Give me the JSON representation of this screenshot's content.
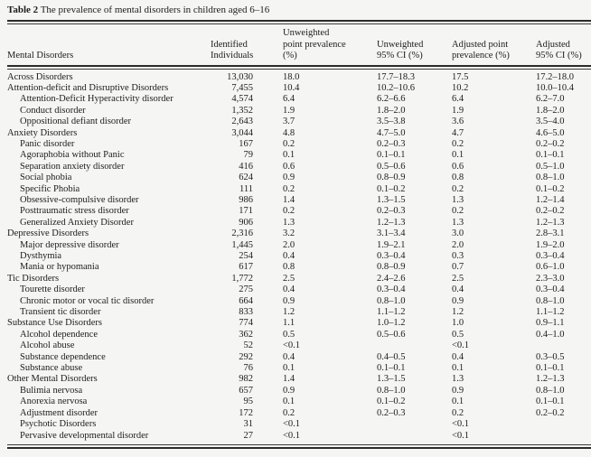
{
  "caption": {
    "label": "Table 2",
    "text": " The prevalence of mental disorders in children aged 6–16"
  },
  "colors": {
    "page_bg": "#f5f5f3",
    "text": "#1c1c1c",
    "rule": "#2b2b2b"
  },
  "table": {
    "columns": [
      {
        "id": "disorder",
        "lines": [
          "Mental Disorders"
        ]
      },
      {
        "id": "identified",
        "lines": [
          "Identified",
          "Individuals"
        ]
      },
      {
        "id": "unw_prev",
        "lines": [
          "Unweighted",
          "point prevalence",
          "(%)"
        ]
      },
      {
        "id": "unw_ci",
        "lines": [
          "Unweighted",
          "95% CI (%)"
        ]
      },
      {
        "id": "adj_prev",
        "lines": [
          "Adjusted point",
          "prevalence (%)"
        ]
      },
      {
        "id": "adj_ci",
        "lines": [
          "Adjusted",
          "95% CI (%)"
        ]
      }
    ],
    "rows": [
      {
        "name": "Across Disorders",
        "indent": 0,
        "identified": "13,030",
        "unw_prev": "18.0",
        "unw_ci": "17.7–18.3",
        "adj_prev": "17.5",
        "adj_ci": "17.2–18.0"
      },
      {
        "name": "Attention-deficit and Disruptive Disorders",
        "indent": 0,
        "identified": "7,455",
        "unw_prev": "10.4",
        "unw_ci": "10.2–10.6",
        "adj_prev": "10.2",
        "adj_ci": "10.0–10.4"
      },
      {
        "name": "Attention-Deficit Hyperactivity disorder",
        "indent": 1,
        "identified": "4,574",
        "unw_prev": "6.4",
        "unw_ci": "6.2–6.6",
        "adj_prev": "6.4",
        "adj_ci": "6.2–7.0"
      },
      {
        "name": "Conduct disorder",
        "indent": 1,
        "identified": "1,352",
        "unw_prev": "1.9",
        "unw_ci": "1.8–2.0",
        "adj_prev": "1.9",
        "adj_ci": "1.8–2.0"
      },
      {
        "name": "Oppositional defiant disorder",
        "indent": 1,
        "identified": "2,643",
        "unw_prev": "3.7",
        "unw_ci": "3.5–3.8",
        "adj_prev": "3.6",
        "adj_ci": "3.5–4.0"
      },
      {
        "name": "Anxiety Disorders",
        "indent": 0,
        "identified": "3,044",
        "unw_prev": "4.8",
        "unw_ci": "4.7–5.0",
        "adj_prev": "4.7",
        "adj_ci": "4.6–5.0"
      },
      {
        "name": "Panic disorder",
        "indent": 1,
        "identified": "167",
        "unw_prev": "0.2",
        "unw_ci": "0.2–0.3",
        "adj_prev": "0.2",
        "adj_ci": "0.2–0.2"
      },
      {
        "name": "Agoraphobia without Panic",
        "indent": 1,
        "identified": "79",
        "unw_prev": "0.1",
        "unw_ci": "0.1–0.1",
        "adj_prev": "0.1",
        "adj_ci": "0.1–0.1"
      },
      {
        "name": "Separation anxiety disorder",
        "indent": 1,
        "identified": "416",
        "unw_prev": "0.6",
        "unw_ci": "0.5–0.6",
        "adj_prev": "0.6",
        "adj_ci": "0.5–1.0"
      },
      {
        "name": "Social phobia",
        "indent": 1,
        "identified": "624",
        "unw_prev": "0.9",
        "unw_ci": "0.8–0.9",
        "adj_prev": "0.8",
        "adj_ci": "0.8–1.0"
      },
      {
        "name": "Specific Phobia",
        "indent": 1,
        "identified": "111",
        "unw_prev": "0.2",
        "unw_ci": "0.1–0.2",
        "adj_prev": "0.2",
        "adj_ci": "0.1–0.2"
      },
      {
        "name": "Obsessive-compulsive disorder",
        "indent": 1,
        "identified": "986",
        "unw_prev": "1.4",
        "unw_ci": "1.3–1.5",
        "adj_prev": "1.3",
        "adj_ci": "1.2–1.4"
      },
      {
        "name": "Posttraumatic stress disorder",
        "indent": 1,
        "identified": "171",
        "unw_prev": "0.2",
        "unw_ci": "0.2–0.3",
        "adj_prev": "0.2",
        "adj_ci": "0.2–0.2"
      },
      {
        "name": "Generalized Anxiety Disorder",
        "indent": 1,
        "identified": "906",
        "unw_prev": "1.3",
        "unw_ci": "1.2–1.3",
        "adj_prev": "1.3",
        "adj_ci": "1.2–1.3"
      },
      {
        "name": "Depressive Disorders",
        "indent": 0,
        "identified": "2,316",
        "unw_prev": "3.2",
        "unw_ci": "3.1–3.4",
        "adj_prev": "3.0",
        "adj_ci": "2.8–3.1"
      },
      {
        "name": "Major depressive disorder",
        "indent": 1,
        "identified": "1,445",
        "unw_prev": "2.0",
        "unw_ci": "1.9–2.1",
        "adj_prev": "2.0",
        "adj_ci": "1.9–2.0"
      },
      {
        "name": "Dysthymia",
        "indent": 1,
        "identified": "254",
        "unw_prev": "0.4",
        "unw_ci": "0.3–0.4",
        "adj_prev": "0.3",
        "adj_ci": "0.3–0.4"
      },
      {
        "name": "Mania or hypomania",
        "indent": 1,
        "identified": "617",
        "unw_prev": "0.8",
        "unw_ci": "0.8–0.9",
        "adj_prev": "0.7",
        "adj_ci": "0.6–1.0"
      },
      {
        "name": "Tic Disorders",
        "indent": 0,
        "identified": "1,772",
        "unw_prev": "2.5",
        "unw_ci": "2.4–2.6",
        "adj_prev": "2.5",
        "adj_ci": "2.3–3.0"
      },
      {
        "name": "Tourette disorder",
        "indent": 1,
        "identified": "275",
        "unw_prev": "0.4",
        "unw_ci": "0.3–0.4",
        "adj_prev": "0.4",
        "adj_ci": "0.3–0.4"
      },
      {
        "name": "Chronic motor or vocal tic disorder",
        "indent": 1,
        "identified": "664",
        "unw_prev": "0.9",
        "unw_ci": "0.8–1.0",
        "adj_prev": "0.9",
        "adj_ci": "0.8–1.0"
      },
      {
        "name": "Transient tic disorder",
        "indent": 1,
        "identified": "833",
        "unw_prev": "1.2",
        "unw_ci": "1.1–1.2",
        "adj_prev": "1.2",
        "adj_ci": "1.1–1.2"
      },
      {
        "name": "Substance Use Disorders",
        "indent": 0,
        "identified": "774",
        "unw_prev": "1.1",
        "unw_ci": "1.0–1.2",
        "adj_prev": "1.0",
        "adj_ci": "0.9–1.1"
      },
      {
        "name": "Alcohol dependence",
        "indent": 1,
        "identified": "362",
        "unw_prev": "0.5",
        "unw_ci": "0.5–0.6",
        "adj_prev": "0.5",
        "adj_ci": "0.4–1.0"
      },
      {
        "name": "Alcohol abuse",
        "indent": 1,
        "identified": "52",
        "unw_prev": "<0.1",
        "unw_ci": "",
        "adj_prev": "<0.1",
        "adj_ci": ""
      },
      {
        "name": "Substance dependence",
        "indent": 1,
        "identified": "292",
        "unw_prev": "0.4",
        "unw_ci": "0.4–0.5",
        "adj_prev": "0.4",
        "adj_ci": "0.3–0.5"
      },
      {
        "name": "Substance abuse",
        "indent": 1,
        "identified": "76",
        "unw_prev": "0.1",
        "unw_ci": "0.1–0.1",
        "adj_prev": "0.1",
        "adj_ci": "0.1–0.1"
      },
      {
        "name": "Other Mental Disorders",
        "indent": 0,
        "identified": "982",
        "unw_prev": "1.4",
        "unw_ci": "1.3–1.5",
        "adj_prev": "1.3",
        "adj_ci": "1.2–1.3"
      },
      {
        "name": "Bulimia nervosa",
        "indent": 1,
        "identified": "657",
        "unw_prev": "0.9",
        "unw_ci": "0.8–1.0",
        "adj_prev": "0.9",
        "adj_ci": "0.8–1.0"
      },
      {
        "name": "Anorexia nervosa",
        "indent": 1,
        "identified": "95",
        "unw_prev": "0.1",
        "unw_ci": "0.1–0.2",
        "adj_prev": "0.1",
        "adj_ci": "0.1–0.1"
      },
      {
        "name": "Adjustment disorder",
        "indent": 1,
        "identified": "172",
        "unw_prev": "0.2",
        "unw_ci": "0.2–0.3",
        "adj_prev": "0.2",
        "adj_ci": "0.2–0.2"
      },
      {
        "name": "Psychotic Disorders",
        "indent": 1,
        "identified": "31",
        "unw_prev": "<0.1",
        "unw_ci": "",
        "adj_prev": "<0.1",
        "adj_ci": ""
      },
      {
        "name": "Pervasive developmental disorder",
        "indent": 1,
        "identified": "27",
        "unw_prev": "<0.1",
        "unw_ci": "",
        "adj_prev": "<0.1",
        "adj_ci": ""
      }
    ]
  }
}
